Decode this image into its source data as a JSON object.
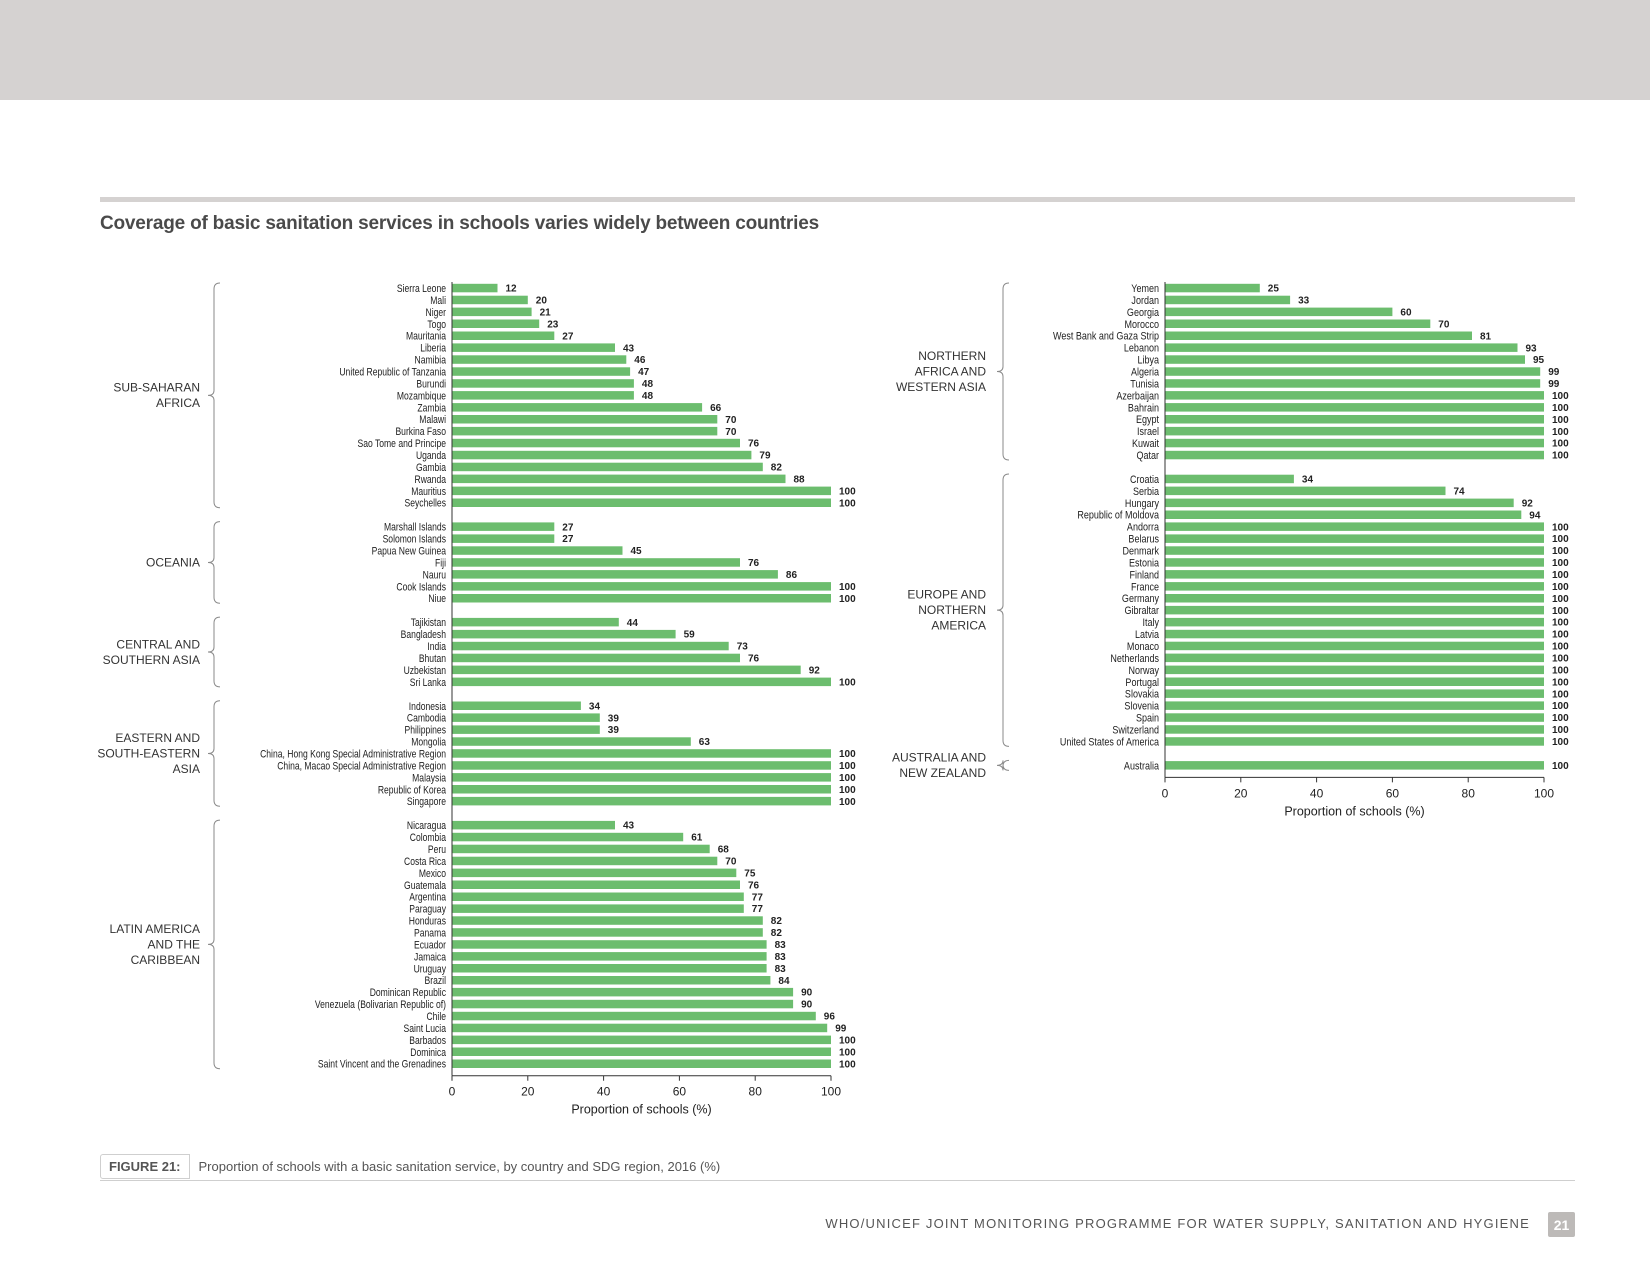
{
  "header": {
    "title": "Coverage of basic sanitation services in schools varies widely between countries"
  },
  "caption": {
    "label": "FIGURE 21:",
    "text": "Proportion of schools with a basic sanitation service, by country and SDG region, 2016 (%)"
  },
  "footer": {
    "text": "WHO/UNICEF JOINT MONITORING PROGRAMME FOR WATER SUPPLY, SANITATION AND HYGIENE",
    "page_number": "21"
  },
  "colors": {
    "bar": "#6cbd6e",
    "band": "#d5d2d1"
  },
  "chart_data": [
    {
      "type": "bar",
      "orientation": "horizontal",
      "xlabel": "Proportion of schools (%)",
      "xlim": [
        0,
        100
      ],
      "xticks": [
        0,
        20,
        40,
        60,
        80,
        100
      ],
      "groups": [
        {
          "region": [
            "SUB-SAHARAN",
            "AFRICA"
          ],
          "categories": [
            "Sierra Leone",
            "Mali",
            "Niger",
            "Togo",
            "Mauritania",
            "Liberia",
            "Namibia",
            "United Republic of Tanzania",
            "Burundi",
            "Mozambique",
            "Zambia",
            "Malawi",
            "Burkina Faso",
            "Sao Tome and Principe",
            "Uganda",
            "Gambia",
            "Rwanda",
            "Mauritius",
            "Seychelles"
          ],
          "values": [
            12,
            20,
            21,
            23,
            27,
            43,
            46,
            47,
            48,
            48,
            66,
            70,
            70,
            76,
            79,
            82,
            88,
            100,
            100
          ]
        },
        {
          "region": [
            "OCEANIA"
          ],
          "categories": [
            "Marshall Islands",
            "Solomon Islands",
            "Papua New Guinea",
            "Fiji",
            "Nauru",
            "Cook Islands",
            "Niue"
          ],
          "values": [
            27,
            27,
            45,
            76,
            86,
            100,
            100
          ]
        },
        {
          "region": [
            "CENTRAL AND",
            "SOUTHERN ASIA"
          ],
          "categories": [
            "Tajikistan",
            "Bangladesh",
            "India",
            "Bhutan",
            "Uzbekistan",
            "Sri Lanka"
          ],
          "values": [
            44,
            59,
            73,
            76,
            92,
            100
          ]
        },
        {
          "region": [
            "EASTERN AND",
            "SOUTH-EASTERN",
            "ASIA"
          ],
          "categories": [
            "Indonesia",
            "Cambodia",
            "Philippines",
            "Mongolia",
            "China, Hong Kong Special Administrative Region",
            "China, Macao Special Administrative Region",
            "Malaysia",
            "Republic of Korea",
            "Singapore"
          ],
          "values": [
            34,
            39,
            39,
            63,
            100,
            100,
            100,
            100,
            100
          ]
        },
        {
          "region": [
            "LATIN AMERICA",
            "AND THE",
            "CARIBBEAN"
          ],
          "categories": [
            "Nicaragua",
            "Colombia",
            "Peru",
            "Costa Rica",
            "Mexico",
            "Guatemala",
            "Argentina",
            "Paraguay",
            "Honduras",
            "Panama",
            "Ecuador",
            "Jamaica",
            "Uruguay",
            "Brazil",
            "Dominican Republic",
            "Venezuela (Bolivarian Republic of)",
            "Chile",
            "Saint Lucia",
            "Barbados",
            "Dominica",
            "Saint Vincent and the Grenadines"
          ],
          "values": [
            43,
            61,
            68,
            70,
            75,
            76,
            77,
            77,
            82,
            82,
            83,
            83,
            83,
            84,
            90,
            90,
            96,
            99,
            100,
            100,
            100
          ]
        }
      ]
    },
    {
      "type": "bar",
      "orientation": "horizontal",
      "xlabel": "Proportion of schools (%)",
      "xlim": [
        0,
        100
      ],
      "xticks": [
        0,
        20,
        40,
        60,
        80,
        100
      ],
      "groups": [
        {
          "region": [
            "NORTHERN",
            "AFRICA AND",
            "WESTERN ASIA"
          ],
          "categories": [
            "Yemen",
            "Jordan",
            "Georgia",
            "Morocco",
            "West Bank and Gaza Strip",
            "Lebanon",
            "Libya",
            "Algeria",
            "Tunisia",
            "Azerbaijan",
            "Bahrain",
            "Egypt",
            "Israel",
            "Kuwait",
            "Qatar"
          ],
          "values": [
            25,
            33,
            60,
            70,
            81,
            93,
            95,
            99,
            99,
            100,
            100,
            100,
            100,
            100,
            100
          ]
        },
        {
          "region": [
            "EUROPE AND",
            "NORTHERN",
            "AMERICA"
          ],
          "categories": [
            "Croatia",
            "Serbia",
            "Hungary",
            "Republic of Moldova",
            "Andorra",
            "Belarus",
            "Denmark",
            "Estonia",
            "Finland",
            "France",
            "Germany",
            "Gibraltar",
            "Italy",
            "Latvia",
            "Monaco",
            "Netherlands",
            "Norway",
            "Portugal",
            "Slovakia",
            "Slovenia",
            "Spain",
            "Switzerland",
            "United States of America"
          ],
          "values": [
            34,
            74,
            92,
            94,
            100,
            100,
            100,
            100,
            100,
            100,
            100,
            100,
            100,
            100,
            100,
            100,
            100,
            100,
            100,
            100,
            100,
            100,
            100
          ]
        },
        {
          "region": [
            "AUSTRALIA AND",
            "NEW ZEALAND"
          ],
          "categories": [
            "Australia"
          ],
          "values": [
            100
          ]
        }
      ]
    }
  ]
}
